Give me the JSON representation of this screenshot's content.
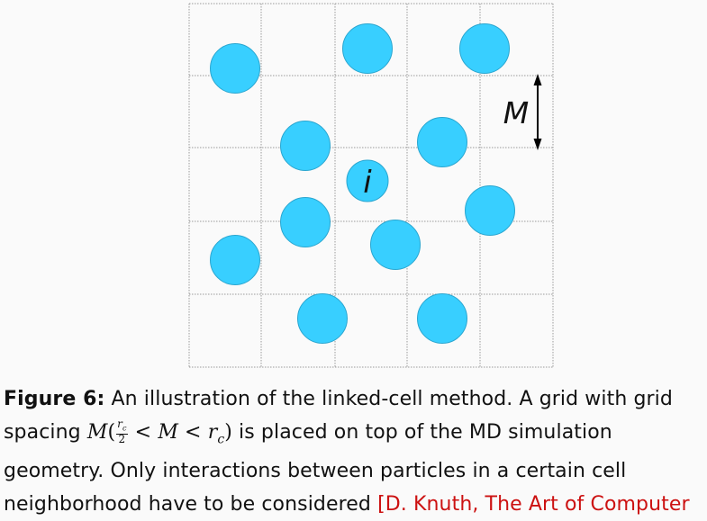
{
  "figure": {
    "grid_rows": 5,
    "grid_cols": 5,
    "cell_label": "M",
    "particle_label": "i",
    "particle_color": "#38cfff",
    "particle_stroke": "#2aa6d0",
    "grid_color": "#9a9a9a"
  },
  "caption": {
    "label": "Figure 6:",
    "line1_text": " An illustration of the linked-cell method. A grid with grid",
    "line2_pre": "spacing ",
    "math_M": "M",
    "math_open": "(",
    "frac_num": "r",
    "frac_num_sub": "c",
    "frac_den": "2",
    "math_lt1": " < ",
    "math_M2": "M",
    "math_lt2": " < ",
    "math_r": "r",
    "math_r_sub": "c",
    "math_close": ")",
    "line2_post": " is placed on top of the MD simulation",
    "line3_text": "geometry. Only interactions between particles in a certain cell",
    "line4_text": "neighborhood have to be considered ",
    "citation": "[D. Knuth, The Art of Computer"
  }
}
